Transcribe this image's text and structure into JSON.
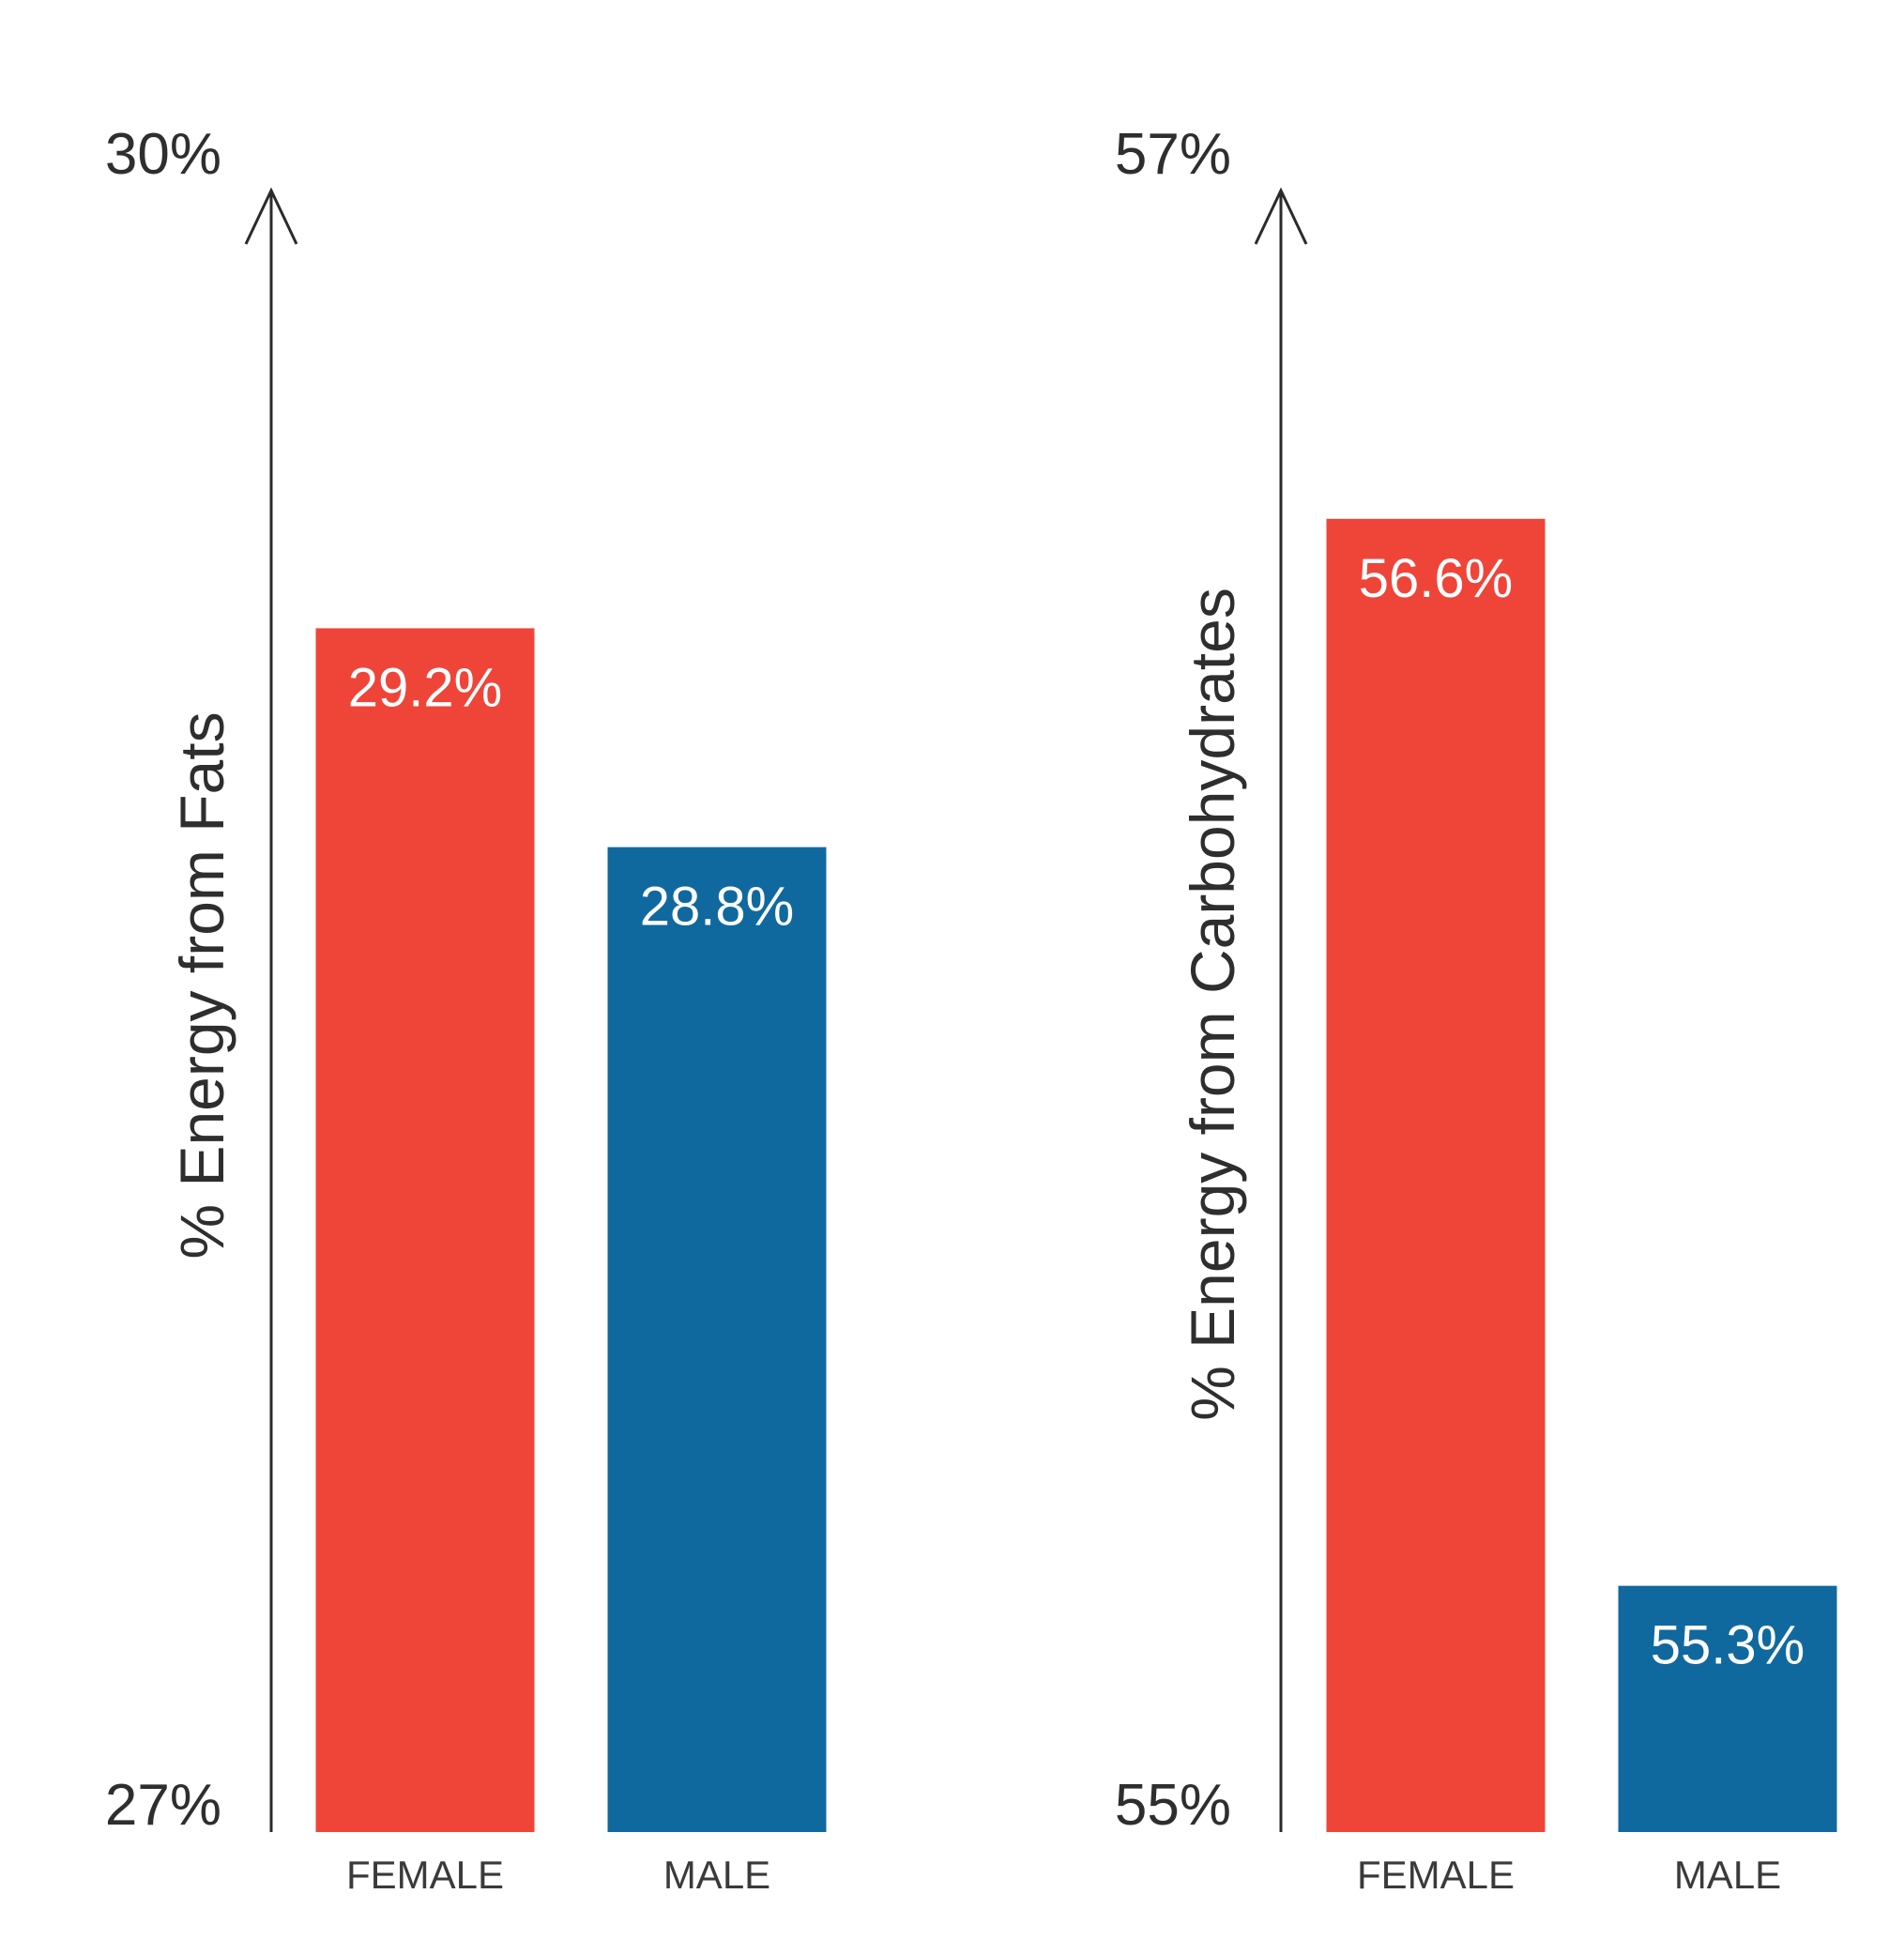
{
  "colors": {
    "female": "#ef4539",
    "male": "#10699e",
    "axis": "#2b2b2b",
    "text": "#2e2e2e"
  },
  "chart_data": [
    {
      "type": "bar",
      "categories": [
        "FEMALE",
        "MALE"
      ],
      "values": [
        29.2,
        28.8
      ],
      "value_labels": [
        "29.2%",
        "28.8%"
      ],
      "ylabel": "% Energy from Fats",
      "xlabel": "",
      "ylim": [
        27,
        30
      ],
      "ylim_labels": [
        "27%",
        "30%"
      ],
      "grid": false
    },
    {
      "type": "bar",
      "categories": [
        "FEMALE",
        "MALE"
      ],
      "values": [
        56.6,
        55.3
      ],
      "value_labels": [
        "56.6%",
        "55.3%"
      ],
      "ylabel": "% Energy from Carbohydrates",
      "xlabel": "",
      "ylim": [
        55,
        57
      ],
      "ylim_labels": [
        "55%",
        "57%"
      ],
      "grid": false
    }
  ]
}
